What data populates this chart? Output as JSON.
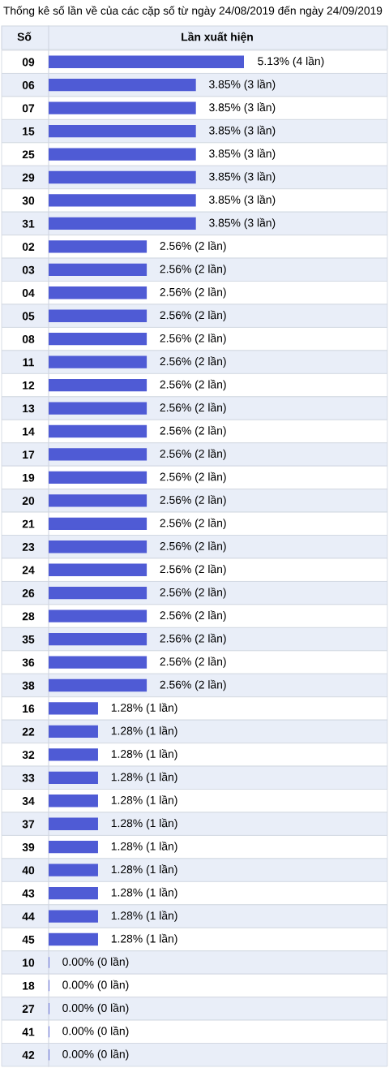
{
  "chart_data": {
    "type": "bar",
    "orientation": "horizontal",
    "title": "Thống kê số lần về của các cặp số từ ngày 24/08/2019 đến ngày 24/09/2019",
    "ylabel": "Số",
    "xlabel": "Lần xuất hiện",
    "categories": [
      "09",
      "06",
      "07",
      "15",
      "25",
      "29",
      "30",
      "31",
      "02",
      "03",
      "04",
      "05",
      "08",
      "11",
      "12",
      "13",
      "14",
      "17",
      "19",
      "20",
      "21",
      "23",
      "24",
      "26",
      "28",
      "35",
      "36",
      "38",
      "16",
      "22",
      "32",
      "33",
      "34",
      "37",
      "39",
      "40",
      "43",
      "44",
      "45",
      "10",
      "18",
      "27",
      "41",
      "42"
    ],
    "values": [
      5.13,
      3.85,
      3.85,
      3.85,
      3.85,
      3.85,
      3.85,
      3.85,
      2.56,
      2.56,
      2.56,
      2.56,
      2.56,
      2.56,
      2.56,
      2.56,
      2.56,
      2.56,
      2.56,
      2.56,
      2.56,
      2.56,
      2.56,
      2.56,
      2.56,
      2.56,
      2.56,
      2.56,
      1.28,
      1.28,
      1.28,
      1.28,
      1.28,
      1.28,
      1.28,
      1.28,
      1.28,
      1.28,
      1.28,
      0.0,
      0.0,
      0.0,
      0.0,
      0.0
    ],
    "value_labels": [
      "5.13% (4 lần)",
      "3.85% (3 lần)",
      "3.85% (3 lần)",
      "3.85% (3 lần)",
      "3.85% (3 lần)",
      "3.85% (3 lần)",
      "3.85% (3 lần)",
      "3.85% (3 lần)",
      "2.56% (2 lần)",
      "2.56% (2 lần)",
      "2.56% (2 lần)",
      "2.56% (2 lần)",
      "2.56% (2 lần)",
      "2.56% (2 lần)",
      "2.56% (2 lần)",
      "2.56% (2 lần)",
      "2.56% (2 lần)",
      "2.56% (2 lần)",
      "2.56% (2 lần)",
      "2.56% (2 lần)",
      "2.56% (2 lần)",
      "2.56% (2 lần)",
      "2.56% (2 lần)",
      "2.56% (2 lần)",
      "2.56% (2 lần)",
      "2.56% (2 lần)",
      "2.56% (2 lần)",
      "2.56% (2 lần)",
      "1.28% (1 lần)",
      "1.28% (1 lần)",
      "1.28% (1 lần)",
      "1.28% (1 lần)",
      "1.28% (1 lần)",
      "1.28% (1 lần)",
      "1.28% (1 lần)",
      "1.28% (1 lần)",
      "1.28% (1 lần)",
      "1.28% (1 lần)",
      "1.28% (1 lần)",
      "0.00% (0 lần)",
      "0.00% (0 lần)",
      "0.00% (0 lần)",
      "0.00% (0 lần)",
      "0.00% (0 lần)"
    ],
    "color": "#4f5bd5"
  }
}
